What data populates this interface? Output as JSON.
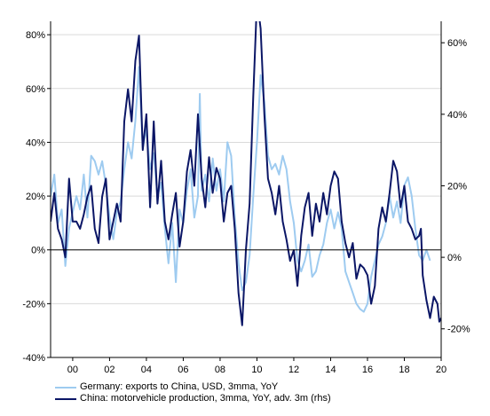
{
  "chart_data": {
    "type": "line",
    "title": "",
    "xlabel": "",
    "ylabel_left": "",
    "ylabel_right": "",
    "x_range": [
      1998.8,
      2020.0
    ],
    "ylim_left": [
      -40,
      85
    ],
    "ylim_right": [
      -28,
      66
    ],
    "x_ticks": [
      {
        "value": 2000,
        "label": "00"
      },
      {
        "value": 2002,
        "label": "02"
      },
      {
        "value": 2004,
        "label": "04"
      },
      {
        "value": 2006,
        "label": "06"
      },
      {
        "value": 2008,
        "label": "08"
      },
      {
        "value": 2010,
        "label": "10"
      },
      {
        "value": 2012,
        "label": "12"
      },
      {
        "value": 2014,
        "label": "14"
      },
      {
        "value": 2016,
        "label": "16"
      },
      {
        "value": 2018,
        "label": "18"
      },
      {
        "value": 2020,
        "label": "20"
      }
    ],
    "y_ticks_left": [
      {
        "value": 80,
        "label": "80%"
      },
      {
        "value": 60,
        "label": "60%"
      },
      {
        "value": 40,
        "label": "40%"
      },
      {
        "value": 20,
        "label": "20%"
      },
      {
        "value": 0,
        "label": "0%"
      },
      {
        "value": -20,
        "label": "-20%"
      },
      {
        "value": -40,
        "label": "-40%"
      }
    ],
    "y_ticks_right": [
      {
        "value": 60,
        "label": "60%"
      },
      {
        "value": 40,
        "label": "40%"
      },
      {
        "value": 20,
        "label": "20%"
      },
      {
        "value": 0,
        "label": "0%"
      },
      {
        "value": -20,
        "label": "-20%"
      }
    ],
    "grid": true,
    "legend_position": "bottom-left",
    "series": [
      {
        "name": "Germany: exports to China, USD, 3mma, YoY",
        "axis": "left",
        "color": "#9ecbf0",
        "points": [
          [
            1998.8,
            20
          ],
          [
            1999.0,
            28
          ],
          [
            1999.2,
            10
          ],
          [
            1999.4,
            15
          ],
          [
            1999.6,
            -6
          ],
          [
            1999.8,
            8
          ],
          [
            2000.0,
            14
          ],
          [
            2000.2,
            20
          ],
          [
            2000.4,
            15
          ],
          [
            2000.6,
            28
          ],
          [
            2000.8,
            12
          ],
          [
            2001.0,
            35
          ],
          [
            2001.2,
            33
          ],
          [
            2001.4,
            28
          ],
          [
            2001.6,
            33
          ],
          [
            2001.8,
            24
          ],
          [
            2002.0,
            12
          ],
          [
            2002.2,
            4
          ],
          [
            2002.4,
            14
          ],
          [
            2002.6,
            18
          ],
          [
            2002.8,
            30
          ],
          [
            2003.0,
            40
          ],
          [
            2003.2,
            34
          ],
          [
            2003.4,
            48
          ],
          [
            2003.6,
            68
          ],
          [
            2003.8,
            38
          ],
          [
            2004.0,
            45
          ],
          [
            2004.2,
            30
          ],
          [
            2004.4,
            36
          ],
          [
            2004.6,
            20
          ],
          [
            2004.8,
            25
          ],
          [
            2005.0,
            8
          ],
          [
            2005.2,
            -5
          ],
          [
            2005.4,
            10
          ],
          [
            2005.6,
            -12
          ],
          [
            2005.8,
            15
          ],
          [
            2006.0,
            10
          ],
          [
            2006.2,
            22
          ],
          [
            2006.4,
            30
          ],
          [
            2006.6,
            12
          ],
          [
            2006.8,
            20
          ],
          [
            2006.9,
            58
          ],
          [
            2007.0,
            22
          ],
          [
            2007.2,
            28
          ],
          [
            2007.4,
            18
          ],
          [
            2007.6,
            34
          ],
          [
            2007.8,
            22
          ],
          [
            2008.0,
            30
          ],
          [
            2008.2,
            18
          ],
          [
            2008.4,
            40
          ],
          [
            2008.6,
            35
          ],
          [
            2008.8,
            12
          ],
          [
            2009.0,
            -5
          ],
          [
            2009.2,
            -15
          ],
          [
            2009.4,
            -12
          ],
          [
            2009.6,
            -2
          ],
          [
            2009.8,
            20
          ],
          [
            2010.0,
            40
          ],
          [
            2010.2,
            65
          ],
          [
            2010.4,
            55
          ],
          [
            2010.6,
            35
          ],
          [
            2010.8,
            30
          ],
          [
            2011.0,
            32
          ],
          [
            2011.2,
            28
          ],
          [
            2011.4,
            35
          ],
          [
            2011.6,
            30
          ],
          [
            2011.8,
            18
          ],
          [
            2012.0,
            10
          ],
          [
            2012.2,
            -4
          ],
          [
            2012.4,
            -8
          ],
          [
            2012.6,
            -4
          ],
          [
            2012.8,
            2
          ],
          [
            2013.0,
            -10
          ],
          [
            2013.2,
            -8
          ],
          [
            2013.4,
            -2
          ],
          [
            2013.6,
            2
          ],
          [
            2013.8,
            10
          ],
          [
            2014.0,
            15
          ],
          [
            2014.2,
            8
          ],
          [
            2014.4,
            14
          ],
          [
            2014.6,
            8
          ],
          [
            2014.8,
            -8
          ],
          [
            2015.0,
            -12
          ],
          [
            2015.2,
            -16
          ],
          [
            2015.4,
            -20
          ],
          [
            2015.6,
            -22
          ],
          [
            2015.8,
            -23
          ],
          [
            2016.0,
            -20
          ],
          [
            2016.2,
            -10
          ],
          [
            2016.4,
            -4
          ],
          [
            2016.6,
            2
          ],
          [
            2016.8,
            5
          ],
          [
            2017.0,
            10
          ],
          [
            2017.2,
            20
          ],
          [
            2017.4,
            12
          ],
          [
            2017.6,
            18
          ],
          [
            2017.8,
            10
          ],
          [
            2018.0,
            24
          ],
          [
            2018.2,
            27
          ],
          [
            2018.4,
            20
          ],
          [
            2018.6,
            8
          ],
          [
            2018.8,
            -2
          ],
          [
            2019.0,
            -4
          ],
          [
            2019.2,
            0
          ],
          [
            2019.4,
            -4
          ]
        ]
      },
      {
        "name": "China: motorvehicle production, 3mma, YoY, adv. 3m (rhs)",
        "axis": "right",
        "color": "#0b1666",
        "points": [
          [
            1998.8,
            10
          ],
          [
            1999.0,
            18
          ],
          [
            1999.2,
            8
          ],
          [
            1999.4,
            5
          ],
          [
            1999.6,
            0
          ],
          [
            1999.8,
            22
          ],
          [
            2000.0,
            10
          ],
          [
            2000.2,
            10
          ],
          [
            2000.4,
            8
          ],
          [
            2000.6,
            12
          ],
          [
            2000.8,
            17
          ],
          [
            2001.0,
            20
          ],
          [
            2001.2,
            8
          ],
          [
            2001.4,
            4
          ],
          [
            2001.6,
            17
          ],
          [
            2001.8,
            22
          ],
          [
            2002.0,
            5
          ],
          [
            2002.2,
            10
          ],
          [
            2002.4,
            15
          ],
          [
            2002.6,
            10
          ],
          [
            2002.8,
            38
          ],
          [
            2003.0,
            47
          ],
          [
            2003.2,
            38
          ],
          [
            2003.4,
            55
          ],
          [
            2003.6,
            62
          ],
          [
            2003.8,
            30
          ],
          [
            2004.0,
            40
          ],
          [
            2004.2,
            14
          ],
          [
            2004.4,
            38
          ],
          [
            2004.6,
            15
          ],
          [
            2004.8,
            27
          ],
          [
            2005.0,
            10
          ],
          [
            2005.2,
            5
          ],
          [
            2005.4,
            12
          ],
          [
            2005.6,
            18
          ],
          [
            2005.8,
            3
          ],
          [
            2006.0,
            10
          ],
          [
            2006.2,
            24
          ],
          [
            2006.4,
            30
          ],
          [
            2006.6,
            20
          ],
          [
            2006.8,
            40
          ],
          [
            2007.0,
            22
          ],
          [
            2007.2,
            14
          ],
          [
            2007.4,
            28
          ],
          [
            2007.6,
            18
          ],
          [
            2007.8,
            25
          ],
          [
            2008.0,
            22
          ],
          [
            2008.2,
            10
          ],
          [
            2008.4,
            18
          ],
          [
            2008.6,
            20
          ],
          [
            2008.8,
            8
          ],
          [
            2009.0,
            -10
          ],
          [
            2009.2,
            -19
          ],
          [
            2009.4,
            2
          ],
          [
            2009.6,
            15
          ],
          [
            2009.8,
            45
          ],
          [
            2010.0,
            72
          ],
          [
            2010.2,
            64
          ],
          [
            2010.4,
            40
          ],
          [
            2010.6,
            22
          ],
          [
            2010.8,
            18
          ],
          [
            2011.0,
            12
          ],
          [
            2011.2,
            20
          ],
          [
            2011.4,
            10
          ],
          [
            2011.6,
            5
          ],
          [
            2011.8,
            -1
          ],
          [
            2012.0,
            2
          ],
          [
            2012.2,
            -8
          ],
          [
            2012.4,
            6
          ],
          [
            2012.6,
            14
          ],
          [
            2012.8,
            18
          ],
          [
            2013.0,
            6
          ],
          [
            2013.2,
            15
          ],
          [
            2013.4,
            10
          ],
          [
            2013.6,
            18
          ],
          [
            2013.8,
            12
          ],
          [
            2014.0,
            20
          ],
          [
            2014.2,
            24
          ],
          [
            2014.4,
            22
          ],
          [
            2014.6,
            10
          ],
          [
            2014.8,
            4
          ],
          [
            2015.0,
            0
          ],
          [
            2015.2,
            4
          ],
          [
            2015.4,
            -6
          ],
          [
            2015.6,
            -2
          ],
          [
            2015.8,
            -3
          ],
          [
            2016.0,
            -5
          ],
          [
            2016.2,
            -13
          ],
          [
            2016.4,
            -8
          ],
          [
            2016.6,
            8
          ],
          [
            2016.8,
            14
          ],
          [
            2017.0,
            10
          ],
          [
            2017.2,
            18
          ],
          [
            2017.4,
            27
          ],
          [
            2017.6,
            24
          ],
          [
            2017.8,
            14
          ],
          [
            2018.0,
            20
          ],
          [
            2018.2,
            10
          ],
          [
            2018.4,
            8
          ],
          [
            2018.6,
            5
          ],
          [
            2018.8,
            6
          ],
          [
            2018.9,
            8
          ],
          [
            2019.0,
            -5
          ],
          [
            2019.2,
            -12
          ],
          [
            2019.4,
            -17
          ],
          [
            2019.6,
            -11
          ],
          [
            2019.8,
            -13
          ],
          [
            2019.9,
            -18
          ],
          [
            2020.0,
            -17
          ]
        ]
      }
    ]
  }
}
